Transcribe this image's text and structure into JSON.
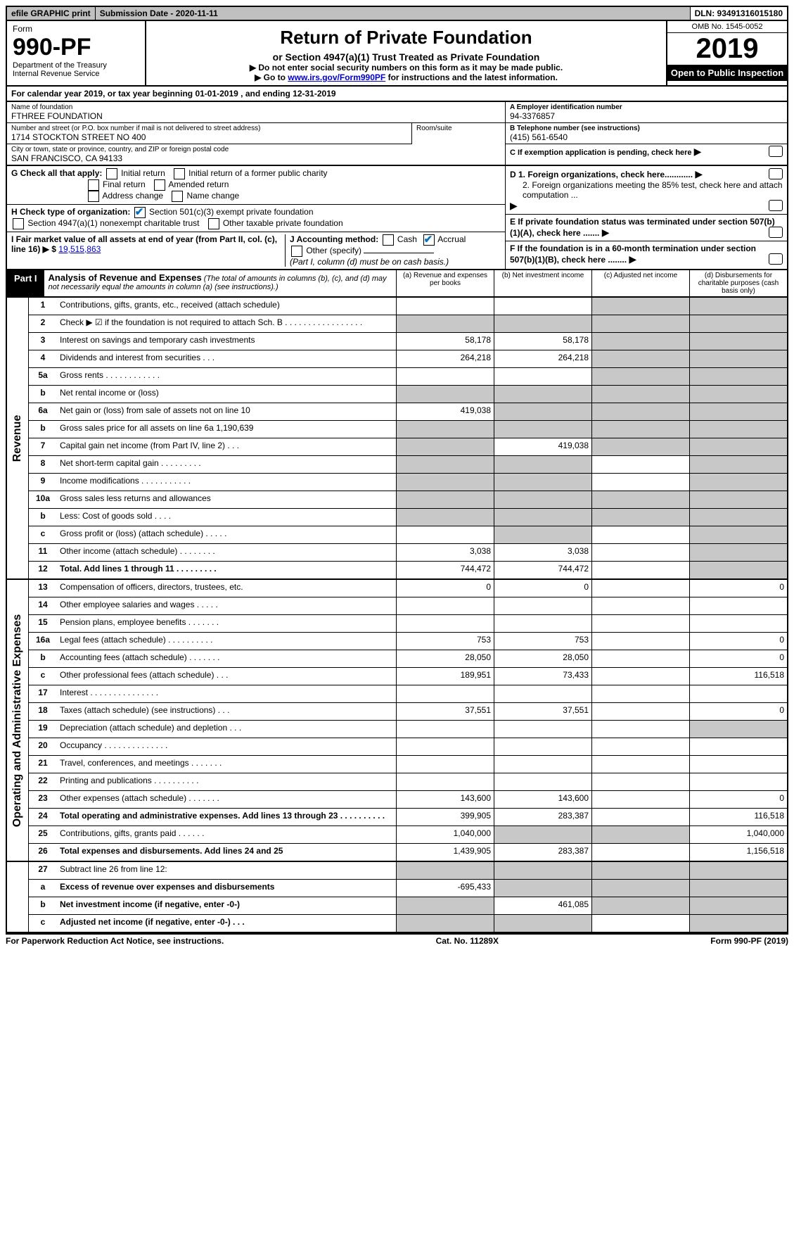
{
  "topbar": {
    "efile": "efile GRAPHIC print",
    "subdate_label": "Submission Date - 2020-11-11",
    "dln": "DLN: 93491316015180"
  },
  "header": {
    "form_word": "Form",
    "form_num": "990-PF",
    "dept": "Department of the Treasury\nInternal Revenue Service",
    "title": "Return of Private Foundation",
    "subtitle": "or Section 4947(a)(1) Trust Treated as Private Foundation",
    "note1": "▶ Do not enter social security numbers on this form as it may be made public.",
    "note2_pre": "▶ Go to ",
    "note2_link": "www.irs.gov/Form990PF",
    "note2_post": " for instructions and the latest information.",
    "omb": "OMB No. 1545-0052",
    "year": "2019",
    "open": "Open to Public Inspection"
  },
  "calyear": "For calendar year 2019, or tax year beginning 01-01-2019                         , and ending 12-31-2019",
  "info": {
    "name_label": "Name of foundation",
    "name": "FTHREE FOUNDATION",
    "ein_label": "A Employer identification number",
    "ein": "94-3376857",
    "addr_label": "Number and street (or P.O. box number if mail is not delivered to street address)",
    "addr": "1714 STOCKTON STREET NO 400",
    "room_label": "Room/suite",
    "phone_label": "B Telephone number (see instructions)",
    "phone": "(415) 561-6540",
    "city_label": "City or town, state or province, country, and ZIP or foreign postal code",
    "city": "SAN FRANCISCO, CA  94133",
    "c_label": "C If exemption application is pending, check here"
  },
  "checks": {
    "g_label": "G Check all that apply:",
    "g_initial": "Initial return",
    "g_initial_former": "Initial return of a former public charity",
    "g_final": "Final return",
    "g_amended": "Amended return",
    "g_address": "Address change",
    "g_name": "Name change",
    "h_label": "H Check type of organization:",
    "h_501c3": "Section 501(c)(3) exempt private foundation",
    "h_4947": "Section 4947(a)(1) nonexempt charitable trust",
    "h_other": "Other taxable private foundation",
    "i_label": "I Fair market value of all assets at end of year (from Part II, col. (c), line 16) ▶ $",
    "i_value": "19,515,863",
    "j_label": "J Accounting method:",
    "j_cash": "Cash",
    "j_accrual": "Accrual",
    "j_other": "Other (specify)",
    "j_note": "(Part I, column (d) must be on cash basis.)",
    "d1": "D 1. Foreign organizations, check here............",
    "d2": "2. Foreign organizations meeting the 85% test, check here and attach computation ...",
    "e": "E If private foundation status was terminated under section 507(b)(1)(A), check here .......",
    "f": "F If the foundation is in a 60-month termination under section 507(b)(1)(B), check here ........"
  },
  "part1": {
    "label": "Part I",
    "title": "Analysis of Revenue and Expenses",
    "note": "(The total of amounts in columns (b), (c), and (d) may not necessarily equal the amounts in column (a) (see instructions).)",
    "col_a": "(a)  Revenue and expenses per books",
    "col_b": "(b)  Net investment income",
    "col_c": "(c)  Adjusted net income",
    "col_d": "(d)  Disbursements for charitable purposes (cash basis only)"
  },
  "side": {
    "revenue": "Revenue",
    "expenses": "Operating and Administrative Expenses"
  },
  "rows": {
    "r1": {
      "n": "1",
      "d": "Contributions, gifts, grants, etc., received (attach schedule)"
    },
    "r2": {
      "n": "2",
      "d": "Check ▶ ☑ if the foundation is not required to attach Sch. B  .  .  .  .  .  .  .  .  .  .  .  .  .  .  .  .  ."
    },
    "r3": {
      "n": "3",
      "d": "Interest on savings and temporary cash investments",
      "a": "58,178",
      "b": "58,178"
    },
    "r4": {
      "n": "4",
      "d": "Dividends and interest from securities    .   .   .",
      "a": "264,218",
      "b": "264,218"
    },
    "r5a": {
      "n": "5a",
      "d": "Gross rents    .  .  .  .  .  .  .  .  .  .  .  ."
    },
    "r5b": {
      "n": "b",
      "d": "Net rental income or (loss)"
    },
    "r6a": {
      "n": "6a",
      "d": "Net gain or (loss) from sale of assets not on line 10",
      "a": "419,038"
    },
    "r6b": {
      "n": "b",
      "d": "Gross sales price for all assets on line 6a            1,190,639"
    },
    "r7": {
      "n": "7",
      "d": "Capital gain net income (from Part IV, line 2)   .   .   .",
      "b": "419,038"
    },
    "r8": {
      "n": "8",
      "d": "Net short-term capital gain   .  .  .  .  .  .  .  .  ."
    },
    "r9": {
      "n": "9",
      "d": "Income modifications  .  .  .  .  .  .  .  .  .  .  ."
    },
    "r10a": {
      "n": "10a",
      "d": "Gross sales less returns and allowances"
    },
    "r10b": {
      "n": "b",
      "d": "Less: Cost of goods sold     .   .   .   ."
    },
    "r10c": {
      "n": "c",
      "d": "Gross profit or (loss) (attach schedule)   .   .   .   .   ."
    },
    "r11": {
      "n": "11",
      "d": "Other income (attach schedule)   .  .  .  .  .  .  .  .",
      "a": "3,038",
      "b": "3,038"
    },
    "r12": {
      "n": "12",
      "d": "Total. Add lines 1 through 11   .  .  .  .  .  .  .  .  .",
      "a": "744,472",
      "b": "744,472"
    },
    "r13": {
      "n": "13",
      "d": "Compensation of officers, directors, trustees, etc.",
      "a": "0",
      "b": "0",
      "dd": "0"
    },
    "r14": {
      "n": "14",
      "d": "Other employee salaries and wages    .   .   .   .   ."
    },
    "r15": {
      "n": "15",
      "d": "Pension plans, employee benefits   .  .  .  .  .  .  ."
    },
    "r16a": {
      "n": "16a",
      "d": "Legal fees (attach schedule)  .  .  .  .  .  .  .  .  .  .",
      "a": "753",
      "b": "753",
      "dd": "0"
    },
    "r16b": {
      "n": "b",
      "d": "Accounting fees (attach schedule)   .  .  .  .  .  .  .",
      "a": "28,050",
      "b": "28,050",
      "dd": "0"
    },
    "r16c": {
      "n": "c",
      "d": "Other professional fees (attach schedule)    .   .   .",
      "a": "189,951",
      "b": "73,433",
      "dd": "116,518"
    },
    "r17": {
      "n": "17",
      "d": "Interest   .  .  .  .  .  .  .  .  .  .  .  .  .  .  ."
    },
    "r18": {
      "n": "18",
      "d": "Taxes (attach schedule) (see instructions)     .   .   .",
      "a": "37,551",
      "b": "37,551",
      "dd": "0"
    },
    "r19": {
      "n": "19",
      "d": "Depreciation (attach schedule) and depletion    .   .   ."
    },
    "r20": {
      "n": "20",
      "d": "Occupancy  .  .  .  .  .  .  .  .  .  .  .  .  .  ."
    },
    "r21": {
      "n": "21",
      "d": "Travel, conferences, and meetings  .  .  .  .  .  .  ."
    },
    "r22": {
      "n": "22",
      "d": "Printing and publications  .  .  .  .  .  .  .  .  .  ."
    },
    "r23": {
      "n": "23",
      "d": "Other expenses (attach schedule)   .  .  .  .  .  .  .",
      "a": "143,600",
      "b": "143,600",
      "dd": "0"
    },
    "r24": {
      "n": "24",
      "d": "Total operating and administrative expenses. Add lines 13 through 23   .  .  .  .  .  .  .  .  .  .",
      "a": "399,905",
      "b": "283,387",
      "dd": "116,518"
    },
    "r25": {
      "n": "25",
      "d": "Contributions, gifts, grants paid     .   .   .   .   .   .",
      "a": "1,040,000",
      "dd": "1,040,000"
    },
    "r26": {
      "n": "26",
      "d": "Total expenses and disbursements. Add lines 24 and 25",
      "a": "1,439,905",
      "b": "283,387",
      "dd": "1,156,518"
    },
    "r27": {
      "n": "27",
      "d": "Subtract line 26 from line 12:"
    },
    "r27a": {
      "n": "a",
      "d": "Excess of revenue over expenses and disbursements",
      "a": "-695,433"
    },
    "r27b": {
      "n": "b",
      "d": "Net investment income (if negative, enter -0-)",
      "b": "461,085"
    },
    "r27c": {
      "n": "c",
      "d": "Adjusted net income (if negative, enter -0-)   .   .   ."
    }
  },
  "footer": {
    "left": "For Paperwork Reduction Act Notice, see instructions.",
    "mid": "Cat. No. 11289X",
    "right": "Form 990-PF (2019)"
  }
}
